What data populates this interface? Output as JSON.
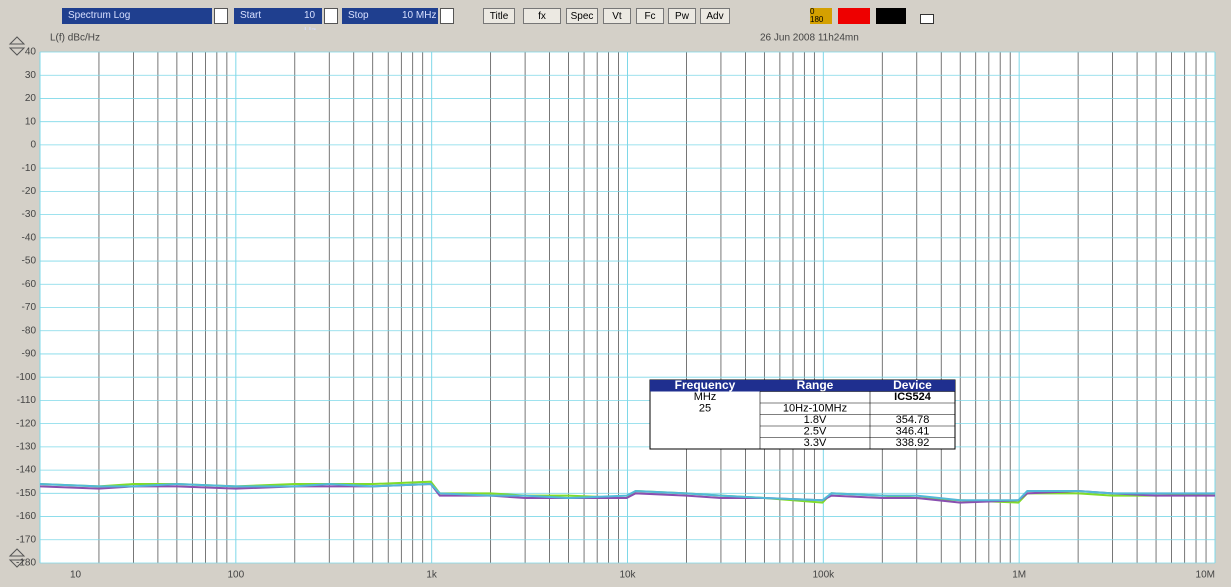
{
  "toolbar": {
    "mode": "Spectrum Log",
    "start_label": "Start",
    "start_value": "10 Hz",
    "stop_label": "Stop",
    "stop_value": "10 MHz",
    "buttons": [
      "Title",
      "fx",
      "Spec",
      "Vt",
      "Fc",
      "Pw",
      "Adv"
    ],
    "phase_top": "0",
    "phase_bottom": "180"
  },
  "chart_data": {
    "type": "line",
    "y_label": "L(f) dBc/Hz",
    "timestamp": "26 Jun 2008  11h24mn",
    "xlog": true,
    "xlim": [
      10,
      10000000
    ],
    "xticks": [
      {
        "value": 10,
        "label": "10"
      },
      {
        "value": 100,
        "label": "100"
      },
      {
        "value": 1000,
        "label": "1k"
      },
      {
        "value": 10000,
        "label": "10k"
      },
      {
        "value": 100000,
        "label": "100k"
      },
      {
        "value": 1000000,
        "label": "1M"
      },
      {
        "value": 10000000,
        "label": "10M"
      }
    ],
    "ylim": [
      -180,
      40
    ],
    "yticks": [
      40,
      30,
      20,
      10,
      0,
      -10,
      -20,
      -30,
      -40,
      -50,
      -60,
      -70,
      -80,
      -90,
      -100,
      -110,
      -120,
      -130,
      -140,
      -150,
      -160,
      -170,
      -180
    ],
    "grid": true,
    "x": [
      10,
      20,
      30,
      50,
      100,
      200,
      300,
      500,
      990,
      1100,
      2000,
      3000,
      5000,
      9900,
      11000,
      20000,
      30000,
      50000,
      99000,
      110000,
      200000,
      300000,
      500000,
      990000,
      1100000,
      2000000,
      3000000,
      5000000,
      10000000
    ],
    "series": [
      {
        "name": "1.8V",
        "color": "#7fdc2a",
        "values": [
          -146,
          -147,
          -146,
          -146,
          -147,
          -146,
          -146,
          -146,
          -145,
          -150,
          -150,
          -151,
          -151,
          -152,
          -149,
          -150,
          -151,
          -152,
          -154,
          -150,
          -151,
          -152,
          -153,
          -154,
          -150,
          -150,
          -151,
          -151,
          -150
        ]
      },
      {
        "name": "2.5V",
        "color": "#8a4fb0",
        "values": [
          -147,
          -148,
          -147,
          -147,
          -148,
          -147,
          -147,
          -147,
          -146,
          -151,
          -151,
          -152,
          -152,
          -152,
          -150,
          -151,
          -152,
          -152,
          -153,
          -151,
          -152,
          -152,
          -154,
          -153,
          -150,
          -149,
          -150,
          -151,
          -151
        ]
      },
      {
        "name": "3.3V",
        "color": "#52b8d8",
        "values": [
          -146,
          -147,
          -147,
          -146,
          -147,
          -147,
          -146,
          -147,
          -146,
          -150,
          -151,
          -151,
          -152,
          -151,
          -149,
          -150,
          -151,
          -152,
          -153,
          -150,
          -151,
          -151,
          -153,
          -153,
          -149,
          -149,
          -150,
          -150,
          -150
        ]
      }
    ],
    "table": {
      "headers": [
        "Frequency",
        "Range",
        "Device"
      ],
      "rows": [
        {
          "frequency": "MHz",
          "device": "ICS524"
        },
        {
          "frequency": "25",
          "range": "10Hz-10MHz"
        },
        {
          "range": "1.8V",
          "device": "354.78"
        },
        {
          "range": "2.5V",
          "device": "346.41"
        },
        {
          "range": "3.3V",
          "device": "338.92"
        }
      ]
    }
  }
}
